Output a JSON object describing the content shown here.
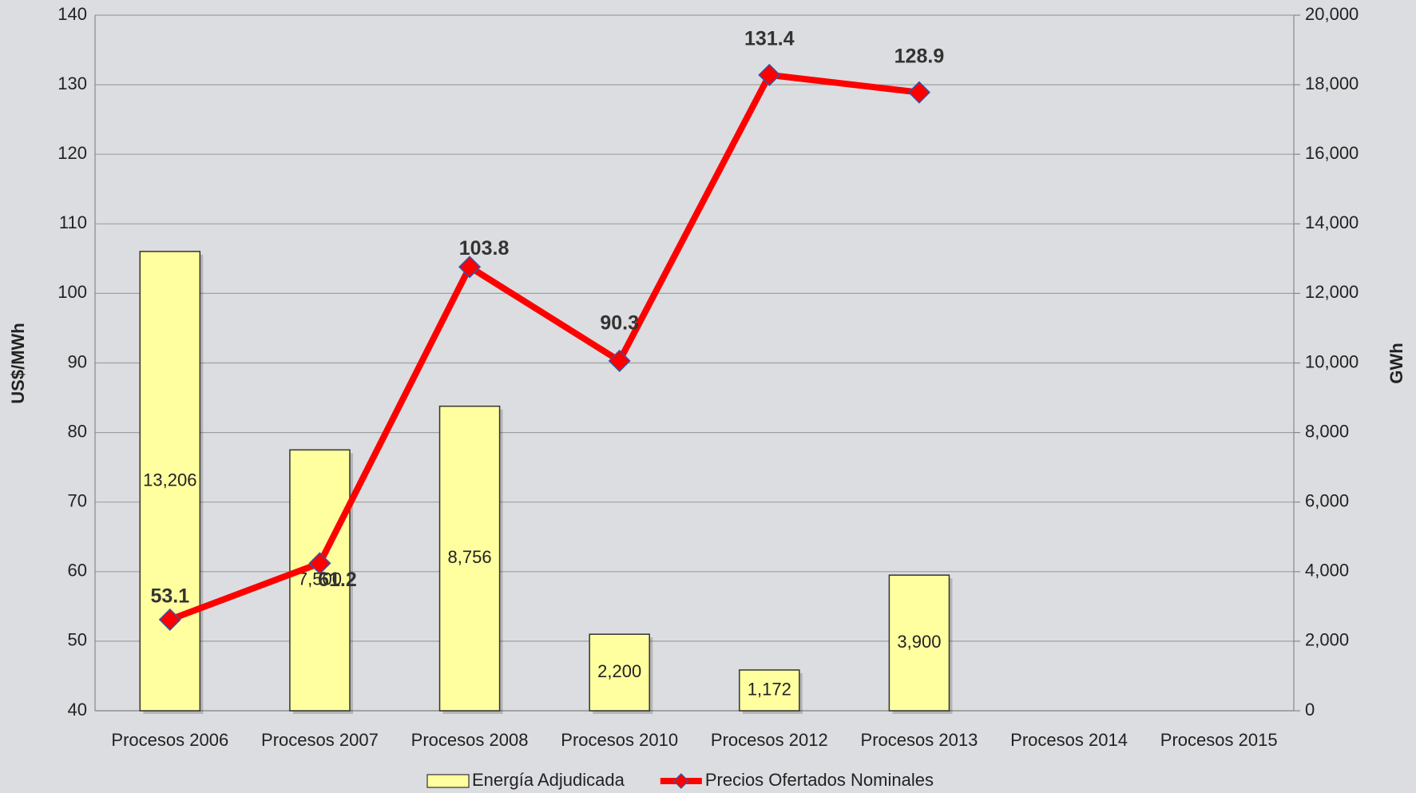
{
  "chart_data": {
    "type": "bar_line",
    "y_label": "US$/MWh",
    "y2_label": "GWh",
    "categories": [
      "Procesos 2006",
      "Procesos 2007",
      "Procesos 2008",
      "Procesos 2010",
      "Procesos 2012",
      "Procesos 2013",
      "Procesos 2014",
      "Procesos 2015"
    ],
    "series": [
      {
        "name": "Energía Adjudicada",
        "type": "bar",
        "axis": "y2",
        "color": "#ffffa0",
        "values": [
          13206,
          7500,
          8756,
          2200,
          1172,
          3900,
          null,
          null
        ],
        "value_labels": [
          "13,206",
          "7,500",
          "8,756",
          "2,200",
          "1,172",
          "3,900",
          null,
          null
        ]
      },
      {
        "name": "Precios Ofertados Nominales",
        "type": "line",
        "axis": "y",
        "color": "#ff0000",
        "values": [
          53.1,
          61.2,
          103.8,
          90.3,
          131.4,
          128.9,
          null,
          null
        ]
      }
    ],
    "ylim": [
      40,
      140
    ],
    "yticks": [
      40,
      50,
      60,
      70,
      80,
      90,
      100,
      110,
      120,
      130,
      140
    ],
    "y2lim": [
      0,
      20000
    ],
    "y2ticks": [
      0,
      {
        "value": 2000,
        "label": "2,000"
      },
      {
        "value": 4000,
        "label": "4,000"
      },
      {
        "value": 6000,
        "label": "6,000"
      },
      {
        "value": 8000,
        "label": "8,000"
      },
      {
        "value": 10000,
        "label": "10,000"
      },
      {
        "value": 12000,
        "label": "12,000"
      },
      {
        "value": 14000,
        "label": "14,000"
      },
      {
        "value": 16000,
        "label": "16,000"
      },
      {
        "value": 18000,
        "label": "18,000"
      },
      {
        "value": 20000,
        "label": "20,000"
      }
    ],
    "grid": true,
    "legend": "bottom"
  }
}
